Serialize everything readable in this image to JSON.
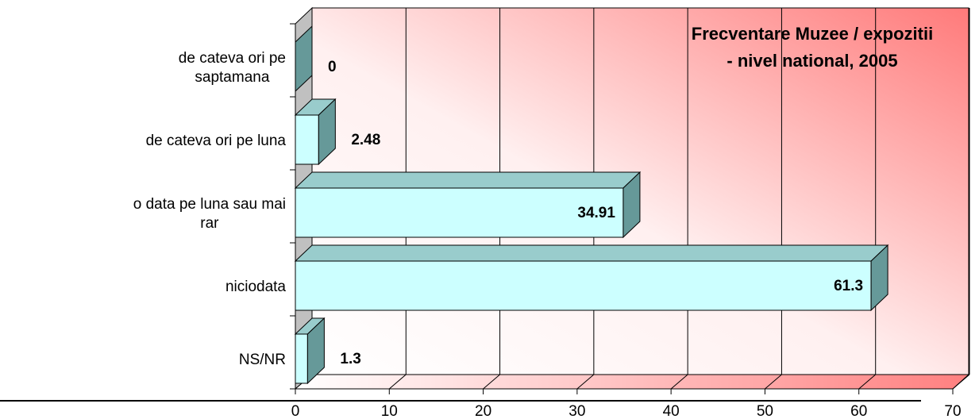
{
  "chart_data": {
    "type": "bar",
    "orientation": "horizontal",
    "title_lines": [
      "Frecventare Muzee / expozitii",
      "- nivel national, 2005"
    ],
    "categories": [
      [
        "de cateva ori pe",
        "saptamana"
      ],
      [
        "de cateva ori pe luna"
      ],
      [
        "o data pe luna sau mai",
        "rar"
      ],
      [
        "niciodata"
      ],
      [
        "NS/NR"
      ]
    ],
    "values": [
      0,
      2.48,
      34.91,
      61.3,
      1.3
    ],
    "value_labels": [
      "0",
      "2.48",
      "34.91",
      "61.3",
      "1.3"
    ],
    "xlim": [
      0,
      70
    ],
    "xticks": [
      0,
      10,
      20,
      30,
      40,
      50,
      60,
      70
    ],
    "grid": true,
    "colors": {
      "bar_front": "#ccffff",
      "bar_top": "#99cccc",
      "bar_side": "#669999",
      "wall_gradient_start": "#ffffff",
      "wall_gradient_end": "#ff7a7a",
      "left_wall": "#c0c0c0"
    }
  }
}
